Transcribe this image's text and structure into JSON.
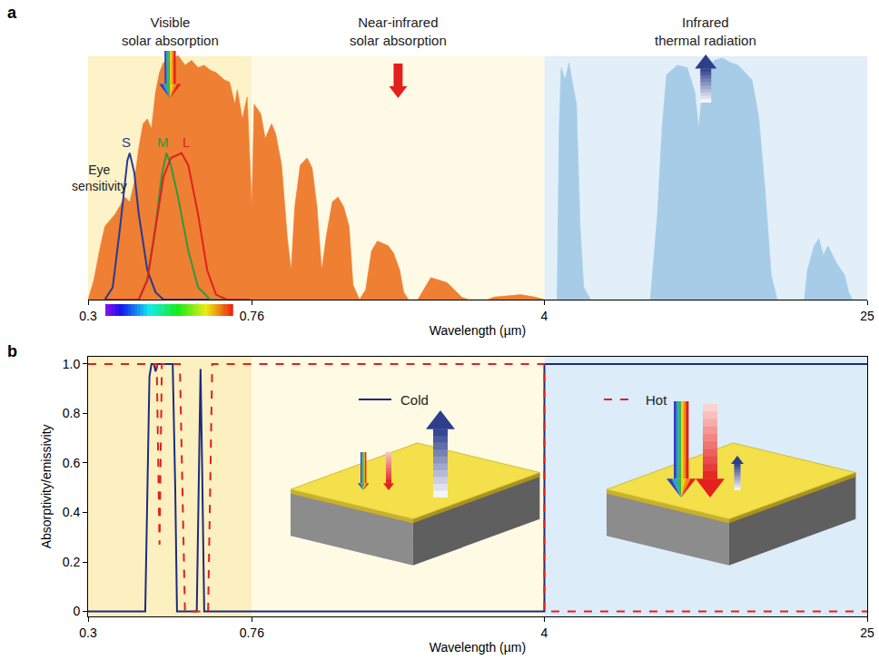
{
  "chart_data": [
    {
      "panel": "a",
      "type": "area",
      "log": "x",
      "tick_labels": "x",
      "x_title": "Wavelength (µm)",
      "xlim": [
        0.3,
        25
      ],
      "xticks": [
        0.3,
        0.76,
        4,
        25
      ],
      "ylim": [
        0,
        1.16
      ],
      "regions": [
        {
          "label": "Visible solar absorption",
          "from": 0.3,
          "to": 0.76,
          "color": "#fdf2c8"
        },
        {
          "label": "Near-infrared solar absorption",
          "from": 0.76,
          "to": 4,
          "color": "#fefae6"
        },
        {
          "label": "Infrared thermal radiation",
          "from": 4,
          "to": 25,
          "color": "#e2eff9"
        }
      ],
      "annotations": [
        "Eye sensitivity"
      ],
      "series": [
        {
          "type": "area",
          "color": "#ee7f33",
          "x": [
            0.3,
            0.31,
            0.32,
            0.33,
            0.35,
            0.37,
            0.38,
            0.39,
            0.4,
            0.41,
            0.42,
            0.43,
            0.44,
            0.45,
            0.46,
            0.48,
            0.5,
            0.52,
            0.54,
            0.56,
            0.58,
            0.6,
            0.62,
            0.65,
            0.67,
            0.69,
            0.7,
            0.72,
            0.74,
            0.76,
            0.77,
            0.8,
            0.82,
            0.85,
            0.87,
            0.9,
            0.93,
            0.95,
            0.97,
            1.0,
            1.04,
            1.07,
            1.1,
            1.13,
            1.16,
            1.2,
            1.24,
            1.28,
            1.32,
            1.35,
            1.4,
            1.45,
            1.5,
            1.55,
            1.6,
            1.65,
            1.7,
            1.76,
            1.8,
            1.85,
            1.95,
            2.0,
            2.05,
            2.1,
            2.2,
            2.3,
            2.4,
            2.5,
            2.6,
            2.9,
            3.0,
            3.2,
            3.5,
            3.8,
            4.0
          ],
          "values": [
            0.0,
            0.08,
            0.2,
            0.3,
            0.35,
            0.42,
            0.4,
            0.48,
            0.62,
            0.72,
            0.74,
            0.7,
            0.85,
            0.93,
            0.97,
            0.98,
            1.0,
            0.96,
            0.98,
            0.95,
            0.96,
            0.94,
            0.93,
            0.9,
            0.89,
            0.8,
            0.86,
            0.74,
            0.83,
            0.38,
            0.8,
            0.76,
            0.66,
            0.72,
            0.68,
            0.55,
            0.25,
            0.12,
            0.38,
            0.55,
            0.58,
            0.54,
            0.38,
            0.12,
            0.26,
            0.4,
            0.42,
            0.38,
            0.3,
            0.06,
            0.0,
            0.04,
            0.2,
            0.24,
            0.23,
            0.22,
            0.19,
            0.12,
            0.03,
            0.0,
            0.0,
            0.03,
            0.06,
            0.09,
            0.08,
            0.07,
            0.04,
            0.01,
            0.0,
            0.0,
            0.01,
            0.015,
            0.02,
            0.01,
            0.0
          ]
        },
        {
          "type": "area",
          "color": "#a6cce8",
          "x": [
            4.0,
            4.3,
            4.35,
            4.4,
            4.5,
            4.6,
            4.7,
            4.8,
            4.9,
            5.0,
            5.2,
            7.3,
            7.6,
            7.8,
            8.0,
            8.5,
            9.0,
            9.4,
            9.6,
            9.9,
            10.5,
            11,
            11.5,
            12,
            12.5,
            13,
            13.5,
            14,
            14.5,
            15,
            17.5,
            17.8,
            18.5,
            19,
            19.5,
            20,
            21,
            22,
            22.5,
            23,
            25
          ],
          "values": [
            0,
            0,
            0.7,
            0.95,
            0.9,
            0.97,
            0.88,
            0.8,
            0.3,
            0.05,
            0,
            0,
            0.35,
            0.7,
            0.92,
            0.96,
            0.95,
            0.85,
            0.7,
            0.93,
            0.98,
            0.99,
            0.97,
            0.96,
            0.93,
            0.9,
            0.75,
            0.45,
            0.1,
            0,
            0,
            0.12,
            0.22,
            0.25,
            0.18,
            0.22,
            0.15,
            0.1,
            0.03,
            0,
            0
          ]
        },
        {
          "name": "S",
          "type": "line",
          "color": "#2a3b8f",
          "x": [
            0.33,
            0.345,
            0.36,
            0.375,
            0.38,
            0.39,
            0.4,
            0.42,
            0.44,
            0.46,
            0.75
          ],
          "values": [
            0,
            0.05,
            0.3,
            0.57,
            0.6,
            0.52,
            0.35,
            0.12,
            0.03,
            0,
            0
          ]
        },
        {
          "name": "M",
          "type": "line",
          "color": "#2f9a3c",
          "x": [
            0.33,
            0.4,
            0.42,
            0.44,
            0.455,
            0.468,
            0.48,
            0.5,
            0.53,
            0.56,
            0.6,
            0.75
          ],
          "values": [
            0,
            0,
            0.08,
            0.3,
            0.5,
            0.6,
            0.55,
            0.42,
            0.2,
            0.05,
            0,
            0
          ]
        },
        {
          "name": "L",
          "type": "line",
          "color": "#e02020",
          "x": [
            0.33,
            0.4,
            0.42,
            0.44,
            0.46,
            0.48,
            0.51,
            0.53,
            0.56,
            0.59,
            0.62,
            0.66,
            0.75
          ],
          "values": [
            0,
            0,
            0.08,
            0.3,
            0.5,
            0.58,
            0.6,
            0.55,
            0.35,
            0.12,
            0.02,
            0,
            0
          ]
        }
      ]
    },
    {
      "panel": "b",
      "type": "line",
      "log": "x",
      "x_title": "Wavelength (µm)",
      "y_title": "Absorptivity/emissivity",
      "xlim": [
        0.3,
        25
      ],
      "xticks": [
        0.3,
        0.76,
        4,
        25
      ],
      "ylim": [
        -0.02,
        1.03
      ],
      "yticks": [
        0,
        0.2,
        0.4,
        0.6,
        0.8,
        {
          "value": 1,
          "label": "1.0"
        }
      ],
      "bands": [
        {
          "from": 0.3,
          "to": 0.76,
          "color": "#fcf0c0"
        },
        {
          "from": 0.76,
          "to": 4,
          "color": "#fefae4"
        },
        {
          "from": 4,
          "to": 25,
          "color": "#dcecf8"
        }
      ],
      "series": [
        {
          "name": "Cold",
          "color": "#1c2b7d",
          "line_style": "solid",
          "x": [
            0.3,
            0.415,
            0.425,
            0.43,
            0.436,
            0.44,
            0.445,
            0.485,
            0.492,
            0.497,
            0.556,
            0.563,
            0.568,
            0.573,
            0.58,
            4,
            4,
            25
          ],
          "values": [
            0,
            0,
            0.95,
            1,
            1,
            0.97,
            1,
            1,
            0.5,
            0,
            0,
            0.6,
            0.98,
            0.6,
            0,
            0,
            1,
            1
          ]
        },
        {
          "name": "Hot",
          "color": "#e3201b",
          "line_style": "dash",
          "x": [
            0.3,
            0.443,
            0.45,
            0.456,
            0.505,
            0.52,
            0.593,
            0.607,
            4,
            4,
            25
          ],
          "values": [
            1,
            1,
            0.27,
            1,
            1,
            0,
            0,
            1,
            1,
            0,
            0
          ]
        }
      ]
    }
  ]
}
